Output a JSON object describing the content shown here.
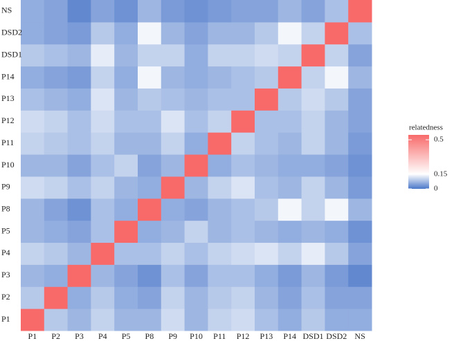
{
  "chart_data": {
    "type": "heatmap",
    "categories": [
      "P1",
      "P2",
      "P3",
      "P4",
      "P5",
      "P8",
      "P9",
      "P10",
      "P11",
      "P12",
      "P13",
      "P14",
      "DSD1",
      "DSD2",
      "NS"
    ],
    "values": [
      [
        0.55,
        0.09,
        0.07,
        0.1,
        0.07,
        0.07,
        0.11,
        0.07,
        0.1,
        0.11,
        0.08,
        0.06,
        0.09,
        0.06,
        0.06
      ],
      [
        0.09,
        0.55,
        0.06,
        0.09,
        0.06,
        0.05,
        0.1,
        0.07,
        0.09,
        0.1,
        0.07,
        0.05,
        0.08,
        0.05,
        0.05
      ],
      [
        0.07,
        0.06,
        0.55,
        0.07,
        0.05,
        0.03,
        0.08,
        0.05,
        0.08,
        0.08,
        0.06,
        0.04,
        0.07,
        0.04,
        0.02
      ],
      [
        0.1,
        0.09,
        0.07,
        0.55,
        0.08,
        0.08,
        0.1,
        0.08,
        0.1,
        0.11,
        0.12,
        0.1,
        0.13,
        0.09,
        0.05
      ],
      [
        0.07,
        0.06,
        0.05,
        0.08,
        0.55,
        0.06,
        0.07,
        0.1,
        0.07,
        0.08,
        0.07,
        0.06,
        0.07,
        0.06,
        0.03
      ],
      [
        0.07,
        0.05,
        0.03,
        0.08,
        0.06,
        0.55,
        0.06,
        0.05,
        0.07,
        0.08,
        0.09,
        0.14,
        0.1,
        0.14,
        0.07
      ],
      [
        0.11,
        0.1,
        0.08,
        0.1,
        0.07,
        0.06,
        0.55,
        0.07,
        0.1,
        0.12,
        0.08,
        0.07,
        0.1,
        0.07,
        0.04
      ],
      [
        0.07,
        0.07,
        0.05,
        0.08,
        0.1,
        0.05,
        0.07,
        0.55,
        0.06,
        0.08,
        0.07,
        0.06,
        0.06,
        0.05,
        0.03
      ],
      [
        0.1,
        0.09,
        0.08,
        0.1,
        0.07,
        0.07,
        0.1,
        0.06,
        0.55,
        0.1,
        0.08,
        0.07,
        0.1,
        0.07,
        0.04
      ],
      [
        0.11,
        0.1,
        0.08,
        0.11,
        0.08,
        0.08,
        0.12,
        0.08,
        0.1,
        0.55,
        0.08,
        0.08,
        0.1,
        0.07,
        0.05
      ],
      [
        0.08,
        0.07,
        0.06,
        0.12,
        0.07,
        0.09,
        0.08,
        0.07,
        0.08,
        0.08,
        0.55,
        0.09,
        0.11,
        0.09,
        0.05
      ],
      [
        0.06,
        0.05,
        0.04,
        0.1,
        0.06,
        0.14,
        0.07,
        0.06,
        0.07,
        0.08,
        0.09,
        0.55,
        0.1,
        0.14,
        0.07
      ],
      [
        0.09,
        0.08,
        0.07,
        0.13,
        0.07,
        0.1,
        0.1,
        0.06,
        0.1,
        0.1,
        0.11,
        0.1,
        0.55,
        0.1,
        0.05
      ],
      [
        0.06,
        0.05,
        0.04,
        0.09,
        0.06,
        0.14,
        0.07,
        0.05,
        0.07,
        0.07,
        0.09,
        0.14,
        0.1,
        0.55,
        0.08
      ],
      [
        0.06,
        0.05,
        0.02,
        0.05,
        0.03,
        0.07,
        0.04,
        0.03,
        0.04,
        0.05,
        0.05,
        0.07,
        0.05,
        0.08,
        0.55
      ]
    ],
    "legend_title": "relatedness",
    "clim": [
      0,
      0.55
    ],
    "midpoint": 0.15,
    "colorbar_ticks": [
      0,
      0.15,
      0.5
    ],
    "colors": {
      "low": "#4a77c9",
      "mid": "#ffffff",
      "high": "#f86a6a"
    }
  }
}
